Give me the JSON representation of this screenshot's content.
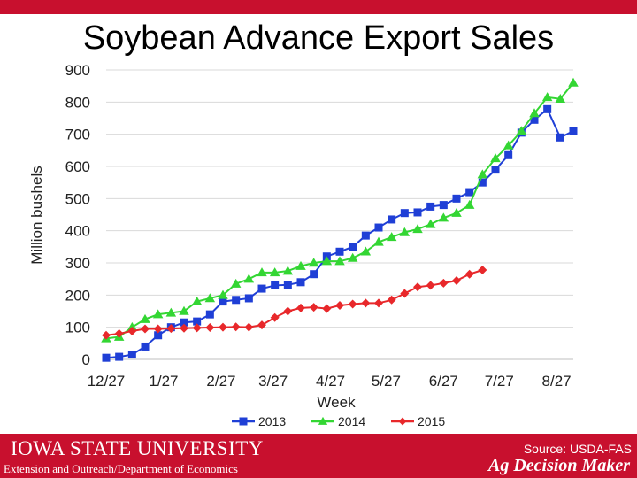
{
  "slide": {
    "title": "Soybean Advance Export Sales"
  },
  "footer": {
    "university": "Iowa State University",
    "department": "Extension and Outreach/Department of Economics",
    "source": "Source: USDA-FAS",
    "brand": "Ag Decision Maker"
  },
  "colors": {
    "band": "#c8102e",
    "series_2013": "#1f3fd6",
    "series_2014": "#33d633",
    "series_2015": "#e8282b"
  },
  "chart_data": {
    "type": "line",
    "title": "",
    "xlabel": "Week",
    "ylabel": "Million bushels",
    "ylim": [
      0,
      900
    ],
    "yticks": [
      0,
      100,
      200,
      300,
      400,
      500,
      600,
      700,
      800,
      900
    ],
    "xtick_labels": [
      "12/27",
      "1/27",
      "2/27",
      "3/27",
      "4/27",
      "5/27",
      "6/27",
      "7/27",
      "8/27"
    ],
    "xtick_weeks": [
      0,
      4.43,
      8.86,
      12.86,
      17.29,
      21.57,
      26,
      30.29,
      34.71
    ],
    "grid": true,
    "legend": "bottom",
    "series": [
      {
        "name": "2013",
        "marker": "square",
        "color": "#1f3fd6",
        "x": [
          0,
          1,
          2,
          3,
          4,
          5,
          6,
          7,
          8,
          9,
          10,
          11,
          12,
          13,
          14,
          15,
          16,
          17,
          18,
          19,
          20,
          21,
          22,
          23,
          24,
          25,
          26,
          27,
          28,
          29,
          30,
          31,
          32,
          33,
          34,
          35,
          36
        ],
        "values": [
          5,
          8,
          15,
          40,
          75,
          100,
          115,
          118,
          140,
          180,
          185,
          190,
          220,
          230,
          232,
          240,
          265,
          320,
          335,
          350,
          385,
          410,
          435,
          455,
          457,
          475,
          480,
          500,
          520,
          550,
          590,
          635,
          705,
          745,
          778,
          690,
          710
        ]
      },
      {
        "name": "2014",
        "marker": "triangle",
        "color": "#33d633",
        "x": [
          0,
          1,
          2,
          3,
          4,
          5,
          6,
          7,
          8,
          9,
          10,
          11,
          12,
          13,
          14,
          15,
          16,
          17,
          18,
          19,
          20,
          21,
          22,
          23,
          24,
          25,
          26,
          27,
          28,
          29,
          30,
          31,
          32,
          33,
          34,
          35,
          36
        ],
        "values": [
          65,
          70,
          100,
          125,
          140,
          145,
          150,
          180,
          190,
          200,
          235,
          250,
          270,
          270,
          275,
          290,
          300,
          305,
          305,
          315,
          335,
          365,
          380,
          395,
          405,
          420,
          440,
          455,
          480,
          575,
          625,
          665,
          710,
          765,
          815,
          810,
          860
        ]
      },
      {
        "name": "2015",
        "marker": "diamond",
        "color": "#e8282b",
        "x": [
          0,
          1,
          2,
          3,
          4,
          5,
          6,
          7,
          8,
          9,
          10,
          11,
          12,
          13,
          14,
          15,
          16,
          17,
          18,
          19,
          20,
          21,
          22,
          23,
          24,
          25,
          26,
          27,
          28,
          29
        ],
        "values": [
          75,
          80,
          88,
          95,
          95,
          96,
          97,
          98,
          99,
          100,
          101,
          100,
          107,
          130,
          150,
          160,
          162,
          158,
          168,
          172,
          175,
          175,
          185,
          205,
          225,
          230,
          237,
          245,
          265,
          278
        ]
      }
    ]
  }
}
